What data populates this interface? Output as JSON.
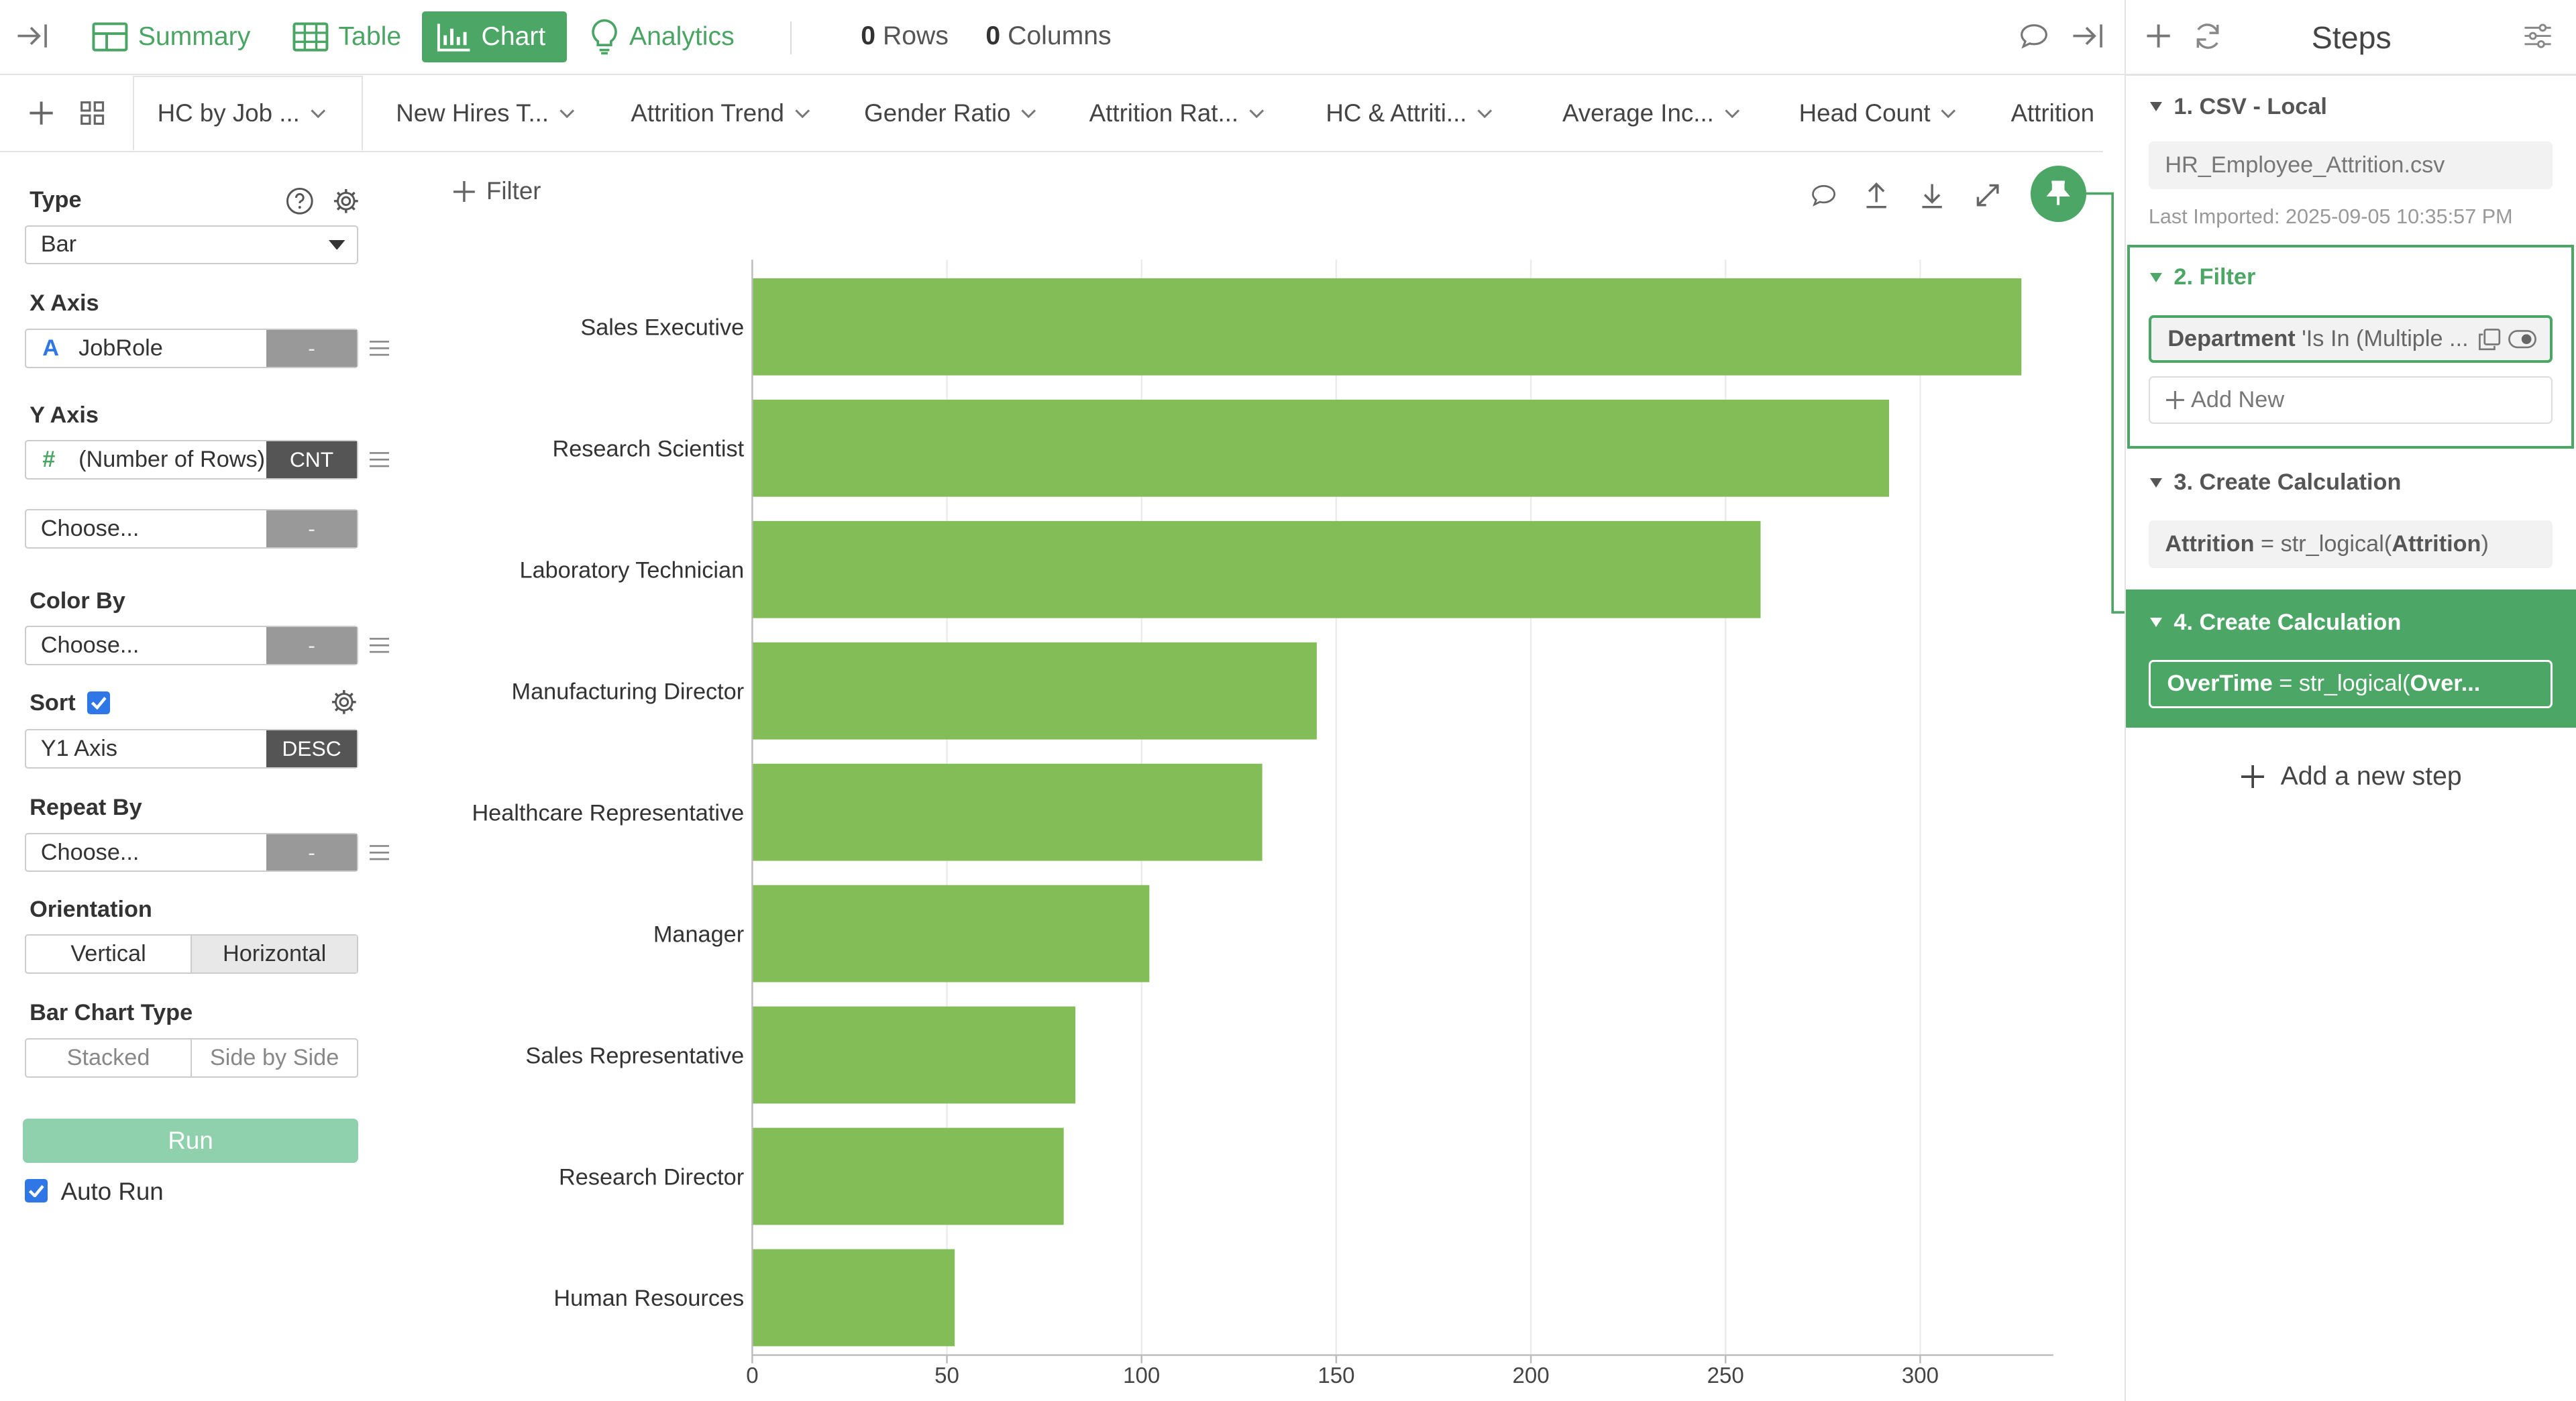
{
  "toolbar": {
    "tabs": [
      {
        "label": "Summary",
        "icon": "summary-icon"
      },
      {
        "label": "Table",
        "icon": "table-icon"
      },
      {
        "label": "Chart",
        "icon": "chart-icon"
      },
      {
        "label": "Analytics",
        "icon": "lightbulb-icon"
      }
    ],
    "rows_count": "0",
    "rows_label": "Rows",
    "columns_count": "0",
    "columns_label": "Columns"
  },
  "chart_tabs": [
    "HC by Job ...",
    "New Hires T...",
    "Attrition Trend",
    "Gender Ratio",
    "Attrition Rat...",
    "HC & Attriti...",
    "Average Inc...",
    "Head Count",
    "Attrition"
  ],
  "left_panel": {
    "type_label": "Type",
    "type_value": "Bar",
    "x_axis_label": "X Axis",
    "x_axis_field": "JobRole",
    "x_axis_type_glyph": "A",
    "x_axis_agg": "-",
    "y_axis_label": "Y Axis",
    "y_axis_field": "(Number of Rows)",
    "y_axis_type_glyph": "#",
    "y_axis_agg": "CNT",
    "y_axis2_field": "Choose...",
    "y_axis2_agg": "-",
    "color_by_label": "Color By",
    "color_by_field": "Choose...",
    "color_by_agg": "-",
    "sort_label": "Sort",
    "sort_field": "Y1 Axis",
    "sort_dir": "DESC",
    "repeat_by_label": "Repeat By",
    "repeat_by_field": "Choose...",
    "repeat_by_agg": "-",
    "orientation_label": "Orientation",
    "orientation_vertical": "Vertical",
    "orientation_horizontal": "Horizontal",
    "bar_type_label": "Bar Chart Type",
    "bar_type_stacked": "Stacked",
    "bar_type_side": "Side by Side",
    "run_label": "Run",
    "auto_run_label": "Auto Run"
  },
  "filter_label": "Filter",
  "colors": {
    "accent": "#4ca665",
    "bar": "#82bd57",
    "run_button": "#8fd1ad",
    "active_step": "#4ca665",
    "checkbox": "#2f77e6"
  },
  "steps_panel": {
    "title": "Steps",
    "step1_title": "1. CSV - Local",
    "step1_file": "HR_Employee_Attrition.csv",
    "step1_imported": "Last Imported: 2025-09-05 10:35:57 PM",
    "step2_title": "2. Filter",
    "step2_filter_col": "Department",
    "step2_filter_rest": " 'Is In (Multiple ...",
    "step2_add_new": "Add New",
    "step3_title": "3. Create Calculation",
    "step3_col": "Attrition",
    "step3_eq": " = str_logical(",
    "step3_arg": "Attrition",
    "step3_close": ")",
    "step4_title": "4. Create Calculation",
    "step4_col": "OverTime",
    "step4_eq": " = str_logical(",
    "step4_arg": "Over...",
    "add_step": "Add a new step"
  },
  "chart_data": {
    "type": "bar",
    "orientation": "horizontal",
    "categories": [
      "Sales Executive",
      "Research Scientist",
      "Laboratory Technician",
      "Manufacturing Director",
      "Healthcare Representative",
      "Manager",
      "Sales Representative",
      "Research Director",
      "Human Resources"
    ],
    "values": [
      326,
      292,
      259,
      145,
      131,
      102,
      83,
      80,
      52
    ],
    "xlim": [
      0,
      330
    ],
    "xticks": [
      0,
      50,
      100,
      150,
      200,
      250,
      300
    ],
    "sort": "desc",
    "color": "#82bd57"
  }
}
